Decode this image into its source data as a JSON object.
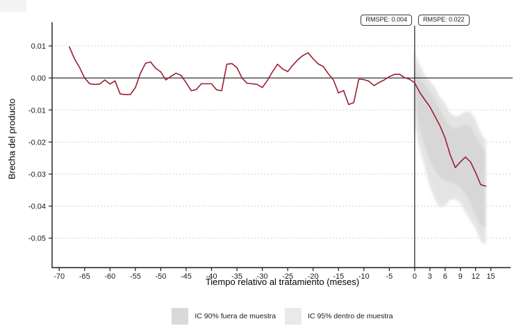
{
  "chart_data": {
    "type": "line",
    "title": "",
    "xlabel": "Tiempo relativo al tratamiento (meses)",
    "ylabel": "Brecha del producto",
    "xlim": [
      -71.4,
      19.3
    ],
    "ylim": [
      -0.0592,
      0.0174
    ],
    "grid": "horizontal-dotted",
    "x_ticks": [
      -70,
      -65,
      -60,
      -55,
      -50,
      -45,
      -40,
      -35,
      -30,
      -25,
      -20,
      -15,
      -10,
      -5,
      0,
      3,
      6,
      9,
      12,
      15
    ],
    "x_tick_labels": [
      "-70",
      "-65",
      "-60",
      "-55",
      "-50",
      "-45",
      "-40",
      "-35",
      "-30",
      "-25",
      "-20",
      "-15",
      "-10",
      "-5",
      "0",
      "3",
      "6",
      "9",
      "12",
      "15"
    ],
    "y_ticks": [
      0.01,
      0.0,
      -0.01,
      -0.02,
      -0.03,
      -0.04,
      -0.05
    ],
    "y_tick_labels": [
      "0.01",
      "0.00",
      "-0.01",
      "-0.02",
      "-0.03",
      "-0.04",
      "-0.05"
    ],
    "reference_lines": {
      "vertical_x": 0,
      "horizontal_y": 0,
      "color": "#1a1a1a"
    },
    "annotations": [
      {
        "text": "RMSPE: 0.004",
        "side": "pre-treatment"
      },
      {
        "text": "RMSPE: 0.022",
        "side": "post-treatment"
      }
    ],
    "series": [
      {
        "name": "brecha-del-producto",
        "color": "#9b1c32",
        "x": [
          -68,
          -67,
          -66,
          -65,
          -64,
          -63,
          -62,
          -61,
          -60,
          -59,
          -58,
          -57,
          -56,
          -55,
          -54,
          -53,
          -52,
          -51,
          -50,
          -49,
          -48,
          -47,
          -46,
          -45,
          -44,
          -43,
          -42,
          -41,
          -40,
          -39,
          -38,
          -37,
          -36,
          -35,
          -34,
          -33,
          -32,
          -31,
          -30,
          -29,
          -28,
          -27,
          -26,
          -25,
          -24,
          -23,
          -22,
          -21,
          -20,
          -19,
          -18,
          -17,
          -16,
          -15,
          -14,
          -13,
          -12,
          -11,
          -10,
          -9,
          -8,
          -7,
          -6,
          -5,
          -4,
          -3,
          -2,
          -1,
          0,
          1,
          2,
          3,
          4,
          5,
          6,
          7,
          8,
          9,
          10,
          11,
          12,
          13,
          14
        ],
        "y": [
          0.0097,
          0.006,
          0.0033,
          0.0,
          -0.0018,
          -0.002,
          -0.0019,
          -0.0006,
          -0.0019,
          -0.0009,
          -0.005,
          -0.0052,
          -0.0052,
          -0.003,
          0.0015,
          0.0046,
          0.005,
          0.003,
          0.0019,
          -0.0006,
          0.0005,
          0.0015,
          0.0008,
          -0.0015,
          -0.004,
          -0.0036,
          -0.0018,
          -0.0018,
          -0.0018,
          -0.0037,
          -0.004,
          0.0043,
          0.0045,
          0.0032,
          0.0,
          -0.0017,
          -0.0018,
          -0.002,
          -0.003,
          -0.0008,
          0.0019,
          0.0043,
          0.0028,
          0.002,
          0.004,
          0.0057,
          0.007,
          0.0079,
          0.006,
          0.0044,
          0.0036,
          0.0013,
          -0.0006,
          -0.0047,
          -0.0039,
          -0.0083,
          -0.0077,
          -0.0004,
          -0.0005,
          -0.001,
          -0.0024,
          -0.0014,
          -0.0006,
          0.0004,
          0.0011,
          0.0012,
          0.0001,
          -0.0004,
          -0.0015,
          -0.0045,
          -0.0068,
          -0.009,
          -0.012,
          -0.015,
          -0.0188,
          -0.024,
          -0.028,
          -0.0262,
          -0.0247,
          -0.0262,
          -0.0295,
          -0.0333,
          -0.0338
        ]
      }
    ],
    "bands": [
      {
        "name": "IC 95% dentro de muestra",
        "color": "#e4e4e4",
        "x": [
          0,
          1,
          2,
          3,
          4,
          5,
          6,
          7,
          8,
          9,
          10,
          11,
          12,
          13,
          14
        ],
        "upper": [
          0.0085,
          0.004,
          0.001,
          -0.001,
          -0.003,
          -0.006,
          -0.008,
          -0.011,
          -0.012,
          -0.0115,
          -0.0105,
          -0.0105,
          -0.013,
          -0.017,
          -0.0195
        ],
        "lower": [
          -0.015,
          -0.022,
          -0.028,
          -0.034,
          -0.038,
          -0.0405,
          -0.04,
          -0.038,
          -0.0378,
          -0.039,
          -0.042,
          -0.0445,
          -0.047,
          -0.051,
          -0.052
        ]
      },
      {
        "name": "IC 90% fuera de muestra",
        "color": "#d7d7d7",
        "x": [
          0,
          1,
          2,
          3,
          4,
          5,
          6,
          7,
          8,
          9,
          10,
          11,
          12,
          13,
          14
        ],
        "upper": [
          0.004,
          0.0,
          -0.002,
          -0.0045,
          -0.007,
          -0.01,
          -0.013,
          -0.015,
          -0.016,
          -0.015,
          -0.0145,
          -0.015,
          -0.018,
          -0.021,
          -0.023
        ],
        "lower": [
          -0.008,
          -0.016,
          -0.021,
          -0.026,
          -0.029,
          -0.031,
          -0.032,
          -0.0325,
          -0.033,
          -0.034,
          -0.036,
          -0.039,
          -0.043,
          -0.046,
          -0.047
        ]
      }
    ],
    "legend": {
      "position": "bottom-center",
      "items": [
        {
          "label": "IC 90% fuera de muestra",
          "color": "#d9d9d9"
        },
        {
          "label": "IC 95% dentro de muestra",
          "color": "#e9e9e9"
        }
      ]
    },
    "colors": {
      "line": "#9b1c32",
      "axis": "#1a1a1a",
      "gridline": "#c2c2c2"
    }
  }
}
